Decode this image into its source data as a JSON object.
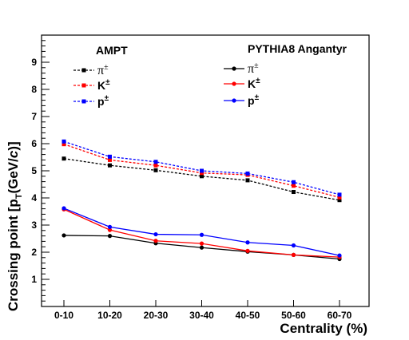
{
  "chart_data": {
    "type": "line",
    "xlabel": "Centrality (%)",
    "ylabel": "Crossing point [p",
    "ylabel_sub": "T",
    "ylabel_rest": "(GeV/",
    "ylabel_c": "c",
    "ylabel_end": ")]",
    "categories": [
      "0-10",
      "10-20",
      "20-30",
      "30-40",
      "40-50",
      "50-60",
      "60-70"
    ],
    "ylim": [
      0,
      10
    ],
    "yticks": [
      "1",
      "2",
      "3",
      "4",
      "5",
      "6",
      "7",
      "8",
      "9"
    ],
    "grid": false,
    "legend_groups": [
      {
        "header": "AMPT",
        "line_style": "dashed",
        "marker": "square",
        "series": [
          {
            "name": "π",
            "sup": "±",
            "color": "#000000",
            "values": [
              5.45,
              5.2,
              5.02,
              4.8,
              4.65,
              4.22,
              3.92
            ]
          },
          {
            "name": "K",
            "sup": "±",
            "color": "#ff0000",
            "values": [
              5.98,
              5.4,
              5.2,
              4.92,
              4.85,
              4.45,
              4.02
            ]
          },
          {
            "name": "p",
            "sup": "±",
            "color": "#0000ff",
            "values": [
              6.08,
              5.52,
              5.33,
              5.0,
              4.9,
              4.58,
              4.12
            ]
          }
        ]
      },
      {
        "header": "PYTHIA8 Angantyr",
        "line_style": "solid",
        "marker": "circle",
        "series": [
          {
            "name": "π",
            "sup": "±",
            "color": "#000000",
            "values": [
              2.62,
              2.6,
              2.33,
              2.17,
              2.02,
              1.9,
              1.75
            ]
          },
          {
            "name": "K",
            "sup": "±",
            "color": "#ff0000",
            "values": [
              3.58,
              2.82,
              2.42,
              2.32,
              2.05,
              1.9,
              1.82
            ]
          },
          {
            "name": "p",
            "sup": "±",
            "color": "#0000ff",
            "values": [
              3.62,
              2.93,
              2.66,
              2.64,
              2.36,
              2.25,
              1.88
            ]
          }
        ]
      }
    ]
  }
}
